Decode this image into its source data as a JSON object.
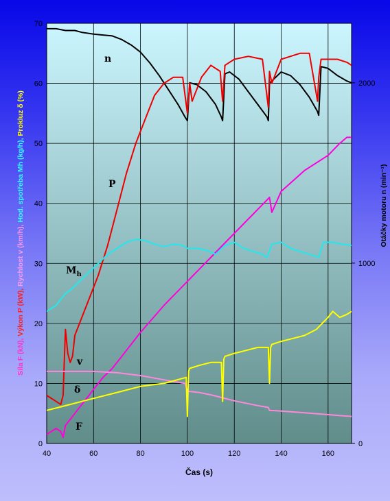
{
  "chart_data": {
    "type": "line",
    "xlabel": "Čas (s)",
    "ylabel_left_parts": [
      {
        "text": "Síla F (kN),",
        "color": "#ff33cc"
      },
      {
        "text": "Výkon P (kW),",
        "color": "#ff2222"
      },
      {
        "text": "Rychlost v (km/h),",
        "color": "#ff99ee"
      },
      {
        "text": "Hod. spotřeba Mh (kg/h),",
        "color": "#33ffff"
      },
      {
        "text": "Prokluz δ (%)",
        "color": "#ffff00"
      }
    ],
    "ylabel_right": "Otáčky motoru n (min⁻¹)",
    "xlim": [
      40,
      170
    ],
    "ylim_left": [
      0,
      70
    ],
    "ylim_right": [
      0,
      2330
    ],
    "x_ticks": [
      40,
      60,
      80,
      100,
      120,
      140,
      160
    ],
    "y_ticks_left": [
      0,
      10,
      20,
      30,
      40,
      50,
      60,
      70
    ],
    "y_ticks_right": [
      0,
      1000,
      2000
    ],
    "grid": true,
    "legend": "none",
    "series": [
      {
        "name": "n",
        "axis": "right",
        "color": "#000000",
        "x": [
          40,
          44,
          48,
          52,
          55,
          60,
          64,
          68,
          72,
          76,
          80,
          84,
          88,
          92,
          96,
          99,
          100,
          101,
          104,
          108,
          112,
          114.5,
          115,
          116,
          118,
          122,
          126,
          130,
          134,
          134.5,
          135,
          136,
          140,
          144,
          148,
          152,
          155.5,
          156,
          157,
          160,
          164,
          168,
          170
        ],
        "values": [
          2300,
          2300,
          2290,
          2290,
          2280,
          2270,
          2265,
          2260,
          2240,
          2210,
          2170,
          2110,
          2040,
          1960,
          1880,
          1810,
          1790,
          2000,
          1990,
          1950,
          1880,
          1810,
          1790,
          2050,
          2060,
          2020,
          1950,
          1880,
          1810,
          1790,
          2000,
          2010,
          2060,
          2040,
          1990,
          1920,
          1840,
          1820,
          2090,
          2080,
          2040,
          2010,
          2000
        ]
      },
      {
        "name": "P",
        "axis": "left",
        "color": "#ee0000",
        "x": [
          40,
          44,
          46,
          47,
          48,
          49,
          50,
          51,
          52,
          55,
          58,
          62,
          66,
          70,
          74,
          78,
          82,
          86,
          90,
          94,
          98,
          100,
          101,
          102,
          106,
          110,
          114,
          115,
          116,
          120,
          126,
          132,
          134.5,
          135,
          136,
          140,
          144,
          148,
          152,
          155.5,
          156,
          157,
          160,
          164,
          168,
          170
        ],
        "values": [
          8,
          7,
          6.5,
          8,
          19,
          15,
          13.5,
          14.5,
          18,
          21,
          24,
          28,
          33,
          39,
          45,
          50,
          54,
          58,
          60,
          61,
          61,
          55,
          60,
          57,
          61,
          63,
          62,
          57,
          63,
          64,
          64.5,
          64,
          56,
          62,
          60,
          64,
          64.5,
          65,
          65,
          57,
          61,
          64,
          64,
          64,
          63.5,
          63
        ]
      },
      {
        "name": "F",
        "axis": "left",
        "color": "#ff00dd",
        "x": [
          40,
          44,
          46,
          47,
          48,
          50,
          52,
          56,
          60,
          64,
          68,
          72,
          80,
          90,
          100,
          110,
          120,
          130,
          135,
          136,
          140,
          150,
          160,
          165,
          168,
          170
        ],
        "values": [
          1.5,
          2.5,
          2,
          1,
          3,
          4,
          5,
          7,
          9,
          11,
          12.5,
          14.5,
          18.5,
          23,
          27,
          31,
          35,
          39,
          41,
          38.5,
          42,
          45.5,
          48,
          50,
          51,
          51
        ]
      },
      {
        "name": "v",
        "axis": "left",
        "color": "#ff88dd",
        "x": [
          40,
          50,
          60,
          70,
          80,
          90,
          99,
          100,
          105,
          110,
          115,
          120,
          130,
          134.5,
          135,
          140,
          150,
          160,
          170
        ],
        "values": [
          12,
          12,
          12,
          11.8,
          11.3,
          10.6,
          10,
          8.7,
          8.5,
          8.1,
          7.6,
          7.1,
          6.3,
          6,
          5.5,
          5.4,
          5.1,
          4.8,
          4.5
        ]
      },
      {
        "name": "Mh",
        "axis": "left",
        "color": "#22e8ee",
        "x": [
          40,
          42,
          44,
          46,
          48,
          50,
          54,
          58,
          62,
          66,
          70,
          74,
          78,
          82,
          86,
          90,
          94,
          98,
          100,
          104,
          108,
          112,
          116,
          120,
          124,
          128,
          132,
          134,
          136,
          140,
          144,
          148,
          152,
          156,
          158,
          162,
          166,
          170
        ],
        "values": [
          22,
          22.5,
          23,
          24,
          25,
          25.5,
          27,
          28.5,
          30,
          31.5,
          32.5,
          33.5,
          34,
          33.8,
          33.2,
          32.8,
          33.2,
          33,
          32.5,
          32.5,
          32.2,
          31.5,
          33,
          33.5,
          32.5,
          32,
          31.5,
          31,
          33.2,
          33.5,
          32.5,
          32,
          31.5,
          31,
          33.5,
          33.5,
          33.2,
          33
        ]
      },
      {
        "name": "δ",
        "axis": "left",
        "color": "#ffff00",
        "x": [
          40,
          45,
          50,
          55,
          60,
          70,
          80,
          90,
          99.5,
          100,
          100.5,
          101,
          105,
          110,
          114.5,
          115,
          115.5,
          116,
          120,
          125,
          130,
          134.5,
          135,
          135.5,
          136,
          140,
          145,
          150,
          155,
          160,
          162,
          165,
          168,
          170
        ],
        "values": [
          5.5,
          6,
          6.5,
          7,
          7.5,
          8.5,
          9.5,
          10,
          11,
          4.5,
          12,
          12.5,
          13,
          13.5,
          13.5,
          7,
          14,
          14.5,
          15,
          15.5,
          16,
          16,
          10,
          16,
          16.5,
          17,
          17.5,
          18,
          19,
          21,
          22,
          21,
          21.5,
          22
        ]
      }
    ]
  },
  "series_labels": {
    "n": "n",
    "P": "P",
    "Mh_main": "M",
    "Mh_sub": "h",
    "v": "v",
    "delta": "δ",
    "F": "F"
  },
  "colors": {
    "plot_top": "#ccf6ff",
    "plot_bottom": "#608c8a",
    "grid": "#000000"
  }
}
